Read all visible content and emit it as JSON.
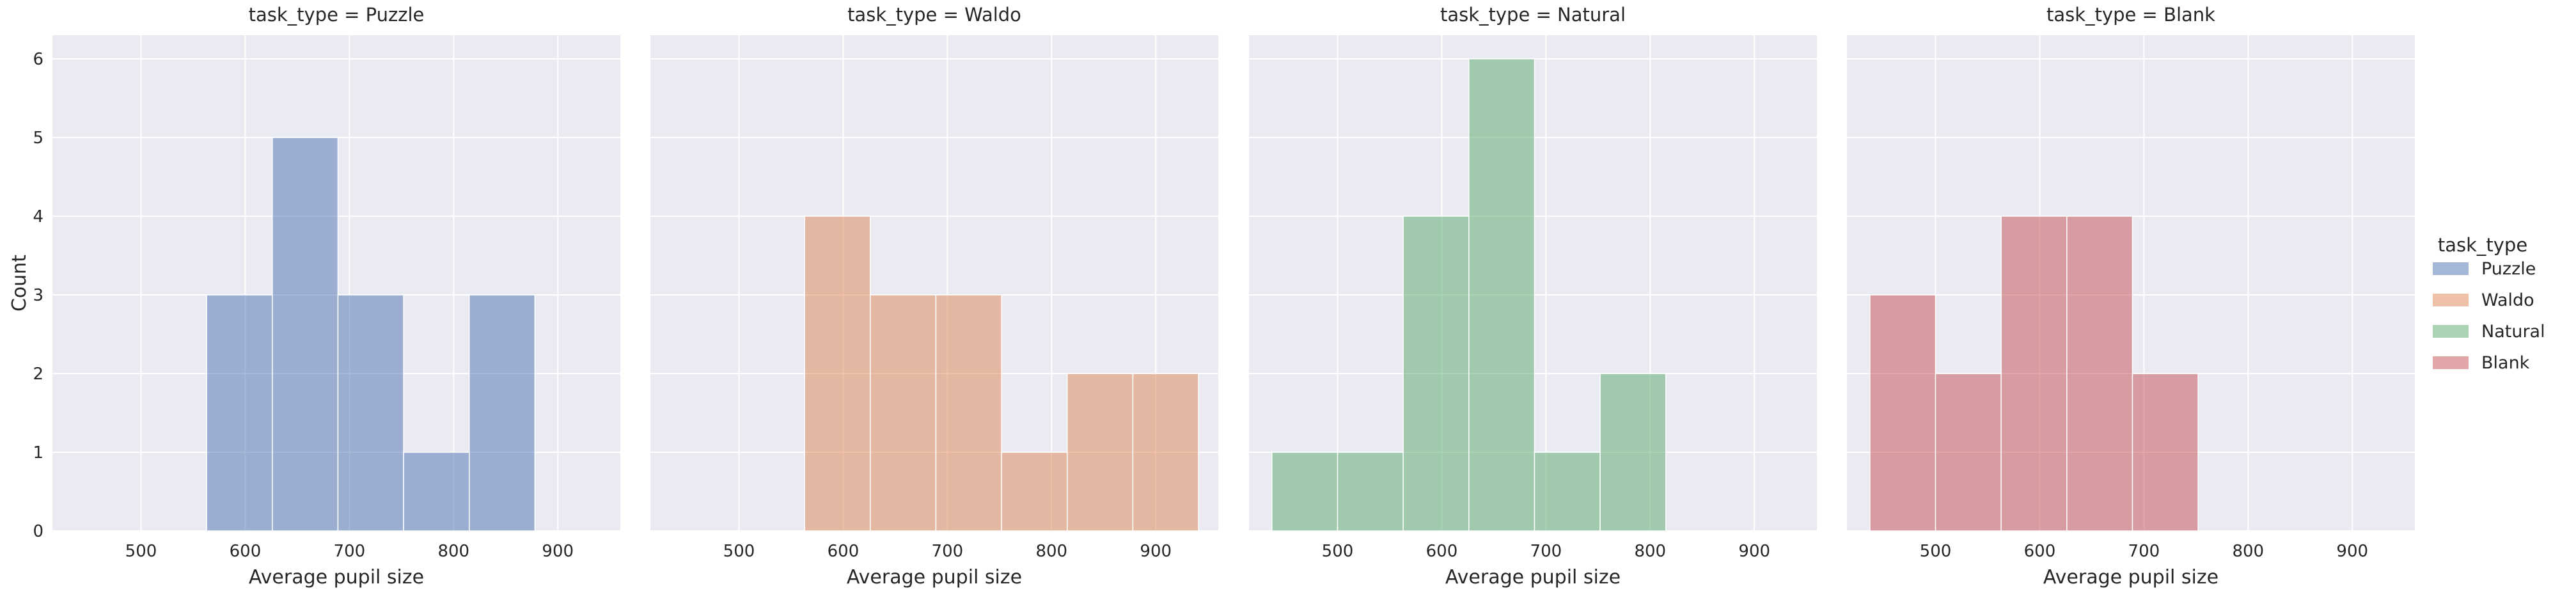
{
  "chart_data": {
    "type": "bar",
    "subtype": "faceted-histogram",
    "facet_variable": "task_type",
    "xlabel": "Average pupil size",
    "ylabel": "Count",
    "xlim": [
      415,
      960
    ],
    "ylim": [
      0,
      6.3
    ],
    "x_ticks": [
      500,
      600,
      700,
      800,
      900
    ],
    "y_ticks": [
      0,
      1,
      2,
      3,
      4,
      5,
      6
    ],
    "grid": true,
    "shared_y": true,
    "legend": {
      "title": "task_type",
      "position": "right",
      "entries": [
        "Puzzle",
        "Waldo",
        "Natural",
        "Blank"
      ]
    },
    "facets": [
      {
        "title": "task_type = Puzzle",
        "series": "Puzzle",
        "color": "#4c72b0",
        "bins": [
          {
            "x0": 563,
            "x1": 626,
            "count": 3
          },
          {
            "x0": 626,
            "x1": 689,
            "count": 5
          },
          {
            "x0": 689,
            "x1": 752,
            "count": 3
          },
          {
            "x0": 752,
            "x1": 815,
            "count": 1
          },
          {
            "x0": 815,
            "x1": 878,
            "count": 3
          }
        ]
      },
      {
        "title": "task_type = Waldo",
        "series": "Waldo",
        "color": "#dd8452",
        "bins": [
          {
            "x0": 563,
            "x1": 626,
            "count": 4
          },
          {
            "x0": 626,
            "x1": 689,
            "count": 3
          },
          {
            "x0": 689,
            "x1": 752,
            "count": 3
          },
          {
            "x0": 752,
            "x1": 815,
            "count": 1
          },
          {
            "x0": 815,
            "x1": 878,
            "count": 2
          },
          {
            "x0": 878,
            "x1": 941,
            "count": 2
          }
        ]
      },
      {
        "title": "task_type = Natural",
        "series": "Natural",
        "color": "#55a868",
        "bins": [
          {
            "x0": 437,
            "x1": 500,
            "count": 1
          },
          {
            "x0": 500,
            "x1": 563,
            "count": 1
          },
          {
            "x0": 563,
            "x1": 626,
            "count": 4
          },
          {
            "x0": 626,
            "x1": 689,
            "count": 6
          },
          {
            "x0": 689,
            "x1": 752,
            "count": 1
          },
          {
            "x0": 752,
            "x1": 815,
            "count": 2
          }
        ]
      },
      {
        "title": "task_type = Blank",
        "series": "Blank",
        "color": "#c44e52",
        "bins": [
          {
            "x0": 437,
            "x1": 500,
            "count": 3
          },
          {
            "x0": 500,
            "x1": 563,
            "count": 2
          },
          {
            "x0": 563,
            "x1": 626,
            "count": 4
          },
          {
            "x0": 626,
            "x1": 689,
            "count": 4
          },
          {
            "x0": 689,
            "x1": 752,
            "count": 2
          }
        ]
      }
    ]
  }
}
